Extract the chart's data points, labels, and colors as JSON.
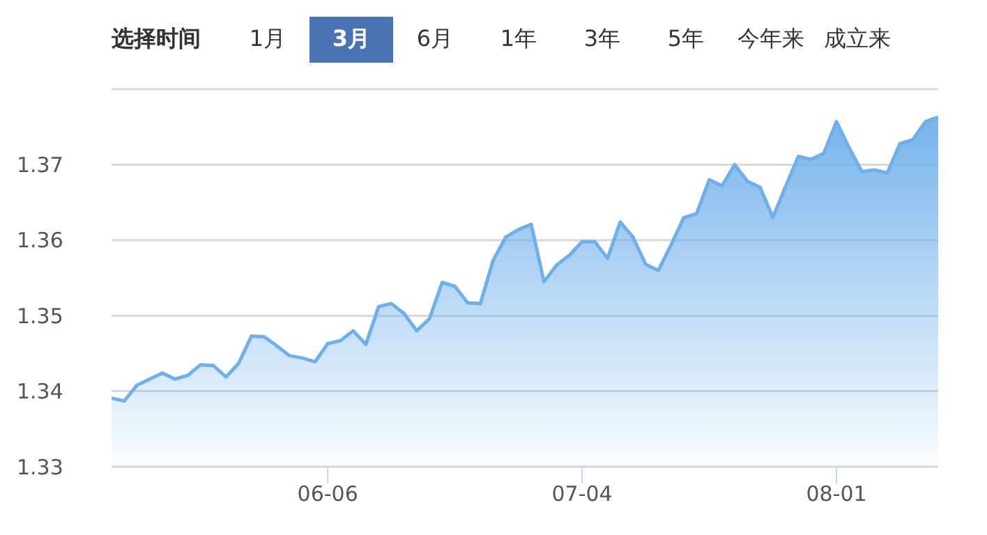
{
  "chart_data": {
    "type": "area",
    "annotations": [
      "选择时间",
      "1月",
      "3月",
      "6月",
      "1年",
      "3年",
      "5年",
      "今年来",
      "成立来"
    ],
    "categories": [
      null,
      null,
      null,
      null,
      null,
      null,
      null,
      null,
      null,
      null,
      null,
      null,
      null,
      null,
      null,
      null,
      null,
      "06-06",
      null,
      null,
      null,
      null,
      null,
      null,
      null,
      null,
      null,
      null,
      null,
      null,
      null,
      null,
      null,
      null,
      null,
      null,
      null,
      "07-04",
      null,
      null,
      null,
      null,
      null,
      null,
      null,
      null,
      null,
      null,
      null,
      null,
      null,
      null,
      null,
      null,
      null,
      null,
      null,
      "08-01",
      null,
      null,
      null,
      null,
      null,
      null,
      null,
      null
    ],
    "series": [
      {
        "color": "#6fb0ea",
        "values": [
          1.3391,
          1.3387,
          1.3408,
          1.3416,
          1.3424,
          1.3416,
          1.3421,
          1.3435,
          1.3434,
          1.3419,
          1.3437,
          1.3473,
          1.3472,
          1.346,
          1.3447,
          1.3444,
          1.3439,
          1.3463,
          1.3467,
          1.348,
          1.3462,
          1.3512,
          1.3516,
          1.3503,
          1.348,
          1.3496,
          1.3544,
          1.3539,
          1.3517,
          1.3516,
          1.3573,
          1.3604,
          1.3614,
          1.3621,
          1.3545,
          1.3567,
          1.358,
          1.3598,
          1.3598,
          1.3576,
          1.3624,
          1.3604,
          1.3568,
          1.356,
          1.3594,
          1.363,
          1.3635,
          1.368,
          1.3672,
          1.37,
          1.3678,
          1.367,
          1.363,
          1.3671,
          1.3711,
          1.3707,
          1.3715,
          1.3757,
          1.3722,
          1.3691,
          1.3693,
          1.3689,
          1.3728,
          1.3733,
          1.3757,
          1.3763
        ]
      }
    ],
    "ylim": [
      1.33,
      1.38
    ],
    "yticks": [
      1.33,
      1.34,
      1.35,
      1.36,
      1.37,
      {
        "value": 1.38,
        "label": null
      }
    ],
    "grid": "y"
  }
}
